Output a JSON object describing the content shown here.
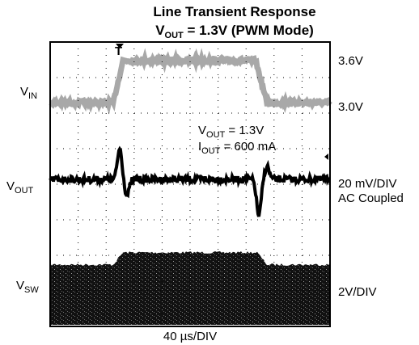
{
  "header": {
    "title": "Line Transient Response",
    "subtitle": {
      "symbol": "V",
      "subscript": "OUT",
      "rest": " = 1.3V (PWM Mode)"
    }
  },
  "trigger": "T",
  "left_labels": [
    {
      "symbol": "V",
      "subscript": "IN"
    },
    {
      "symbol": "V",
      "subscript": "OUT"
    },
    {
      "symbol": "V",
      "subscript": "SW"
    }
  ],
  "right_labels": [
    "3.6V",
    "3.0V",
    "20 mV/DIV",
    "AC Coupled",
    "2V/DIV"
  ],
  "annotation": [
    {
      "symbol": "V",
      "subscript": "OUT",
      "rest": " = 1.3V"
    },
    {
      "symbol": "I",
      "subscript": "OUT",
      "rest": " = 600 mA"
    }
  ],
  "time_scale": "40 µs/DIV"
}
